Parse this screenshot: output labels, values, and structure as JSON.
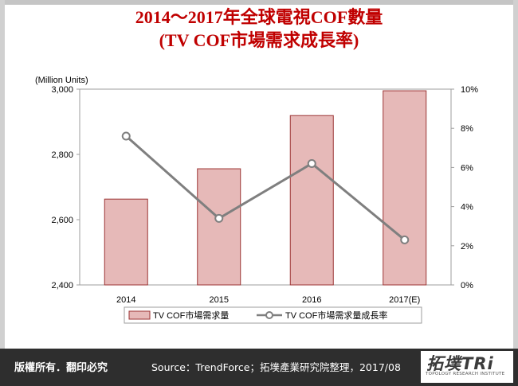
{
  "title": {
    "line1": "2014～2017年全球電視COF數量",
    "line2": "(TV COF市場需求成長率)"
  },
  "footer": {
    "rights": "版權所有．翻印必究",
    "source": "Source：TrendForce；拓墣產業研究院整理，2017/08",
    "logo_main": "拓墣TRi",
    "logo_sub": "TOPOLOGY RESEARCH INSTITUTE"
  },
  "chart_data": {
    "type": "bar",
    "categories": [
      "2014",
      "2015",
      "2016",
      "2017(E)"
    ],
    "y_unit_label": "(Million Units)",
    "series": [
      {
        "name": "TV COF市場需求量",
        "type": "bar",
        "axis": "left",
        "values": [
          2663,
          2756,
          2919,
          2995
        ]
      },
      {
        "name": "TV COF市場需求量成長率",
        "type": "line",
        "axis": "right",
        "values": [
          7.6,
          3.4,
          6.2,
          2.3
        ]
      }
    ],
    "left_axis": {
      "ylim": [
        2400,
        3000
      ],
      "ticks": [
        "2,400",
        "2,600",
        "2,800",
        "3,000"
      ],
      "tick_values": [
        2400,
        2600,
        2800,
        3000
      ]
    },
    "right_axis": {
      "ylim": [
        0,
        10
      ],
      "ticks": [
        "0%",
        "2%",
        "4%",
        "6%",
        "8%",
        "10%"
      ],
      "tick_values": [
        0,
        2,
        4,
        6,
        8,
        10
      ]
    },
    "grid": false,
    "legend_position": "bottom",
    "colors": {
      "bar_fill": "#e6b9b8",
      "bar_stroke": "#9c3434",
      "line": "#7f7f7f",
      "marker_fill": "#ffffff"
    }
  }
}
